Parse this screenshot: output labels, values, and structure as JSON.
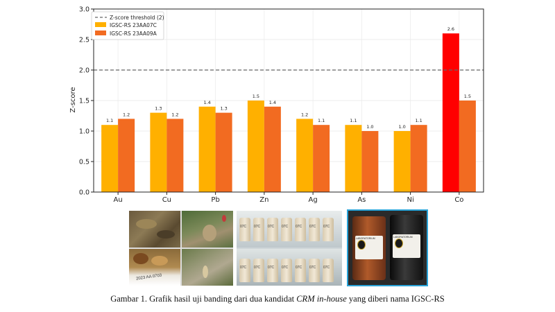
{
  "chart_data": {
    "type": "bar",
    "categories": [
      "Au",
      "Cu",
      "Pb",
      "Zn",
      "Ag",
      "As",
      "Ni",
      "Co"
    ],
    "series": [
      {
        "name": "IGSC-RS 23AA07C",
        "values": [
          1.1,
          1.3,
          1.4,
          1.5,
          1.2,
          1.1,
          1.0,
          2.6
        ],
        "labels": [
          "1.1",
          "1.3",
          "1.4",
          "1.5",
          "1.2",
          "1.1",
          "1.0",
          "2.6"
        ],
        "color": "#FFB000",
        "highlight": {
          "index": 7,
          "color": "#FF0000"
        }
      },
      {
        "name": "IGSC-RS 23AA09A",
        "values": [
          1.2,
          1.2,
          1.3,
          1.4,
          1.1,
          1.0,
          1.1,
          1.5
        ],
        "labels": [
          "1.2",
          "1.2",
          "1.3",
          "1.4",
          "1.1",
          "1.0",
          "1.1",
          "1.5"
        ],
        "color": "#F26B21"
      }
    ],
    "threshold": {
      "label": "Z-score threshold (2)",
      "value": 2.0,
      "color": "#666666"
    },
    "ylabel": "Z-score",
    "xlabel": "",
    "ylim": [
      0,
      3.0
    ],
    "yticks": [
      0.0,
      0.5,
      1.0,
      1.5,
      2.0,
      2.5,
      3.0
    ],
    "ytick_labels": [
      "0.0",
      "0.5",
      "1.0",
      "1.5",
      "2.0",
      "2.5",
      "3.0"
    ],
    "grid": true,
    "legend_position": "top-left"
  },
  "photos": {
    "panel1": {
      "lab_label": "2023 AA 0703"
    },
    "panel2": {
      "jar_labels": [
        "07C",
        "07C",
        "07C",
        "07C",
        "07C",
        "07C",
        "07C"
      ]
    },
    "panel3": {
      "can_label_left": "LABORATORIUM",
      "can_label_right": "LABORATORIUM"
    }
  },
  "caption": {
    "prefix": "Gambar 1. Grafik hasil uji banding dari dua kandidat ",
    "emphasis": "CRM in-house",
    "suffix": " yang diberi nama IGSC-RS"
  }
}
